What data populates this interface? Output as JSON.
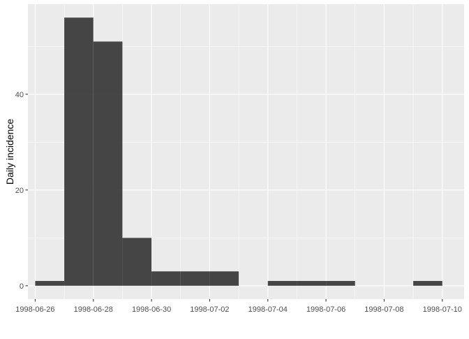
{
  "chart_data": {
    "type": "bar",
    "title": "",
    "xlabel": "",
    "ylabel": "Daily incidence",
    "bin_width_days": 1,
    "bins": [
      {
        "start": "1998-06-26",
        "end": "1998-06-27",
        "value": 1
      },
      {
        "start": "1998-06-27",
        "end": "1998-06-28",
        "value": 56
      },
      {
        "start": "1998-06-28",
        "end": "1998-06-29",
        "value": 51
      },
      {
        "start": "1998-06-29",
        "end": "1998-06-30",
        "value": 10
      },
      {
        "start": "1998-06-30",
        "end": "1998-07-01",
        "value": 3
      },
      {
        "start": "1998-07-01",
        "end": "1998-07-02",
        "value": 3
      },
      {
        "start": "1998-07-02",
        "end": "1998-07-03",
        "value": 3
      },
      {
        "start": "1998-07-03",
        "end": "1998-07-04",
        "value": 0
      },
      {
        "start": "1998-07-04",
        "end": "1998-07-05",
        "value": 1
      },
      {
        "start": "1998-07-05",
        "end": "1998-07-06",
        "value": 1
      },
      {
        "start": "1998-07-06",
        "end": "1998-07-07",
        "value": 1
      },
      {
        "start": "1998-07-07",
        "end": "1998-07-08",
        "value": 0
      },
      {
        "start": "1998-07-08",
        "end": "1998-07-09",
        "value": 0
      },
      {
        "start": "1998-07-09",
        "end": "1998-07-10",
        "value": 1
      }
    ],
    "x_ticks": [
      "1998-06-26",
      "1998-06-28",
      "1998-06-30",
      "1998-07-02",
      "1998-07-04",
      "1998-07-06",
      "1998-07-08",
      "1998-07-10"
    ],
    "y_ticks": [
      0,
      20,
      40
    ],
    "xlim": [
      "1998-06-25T18:00",
      "1998-07-10T18:00"
    ],
    "ylim": [
      -2.8,
      58.8
    ],
    "grid": true,
    "legend": "none",
    "colors": {
      "panel_background": "#ebebeb",
      "grid_major": "#ffffff",
      "bar_fill": "#333333",
      "bar_opacity": 0.9,
      "tick_color": "#333333"
    }
  }
}
